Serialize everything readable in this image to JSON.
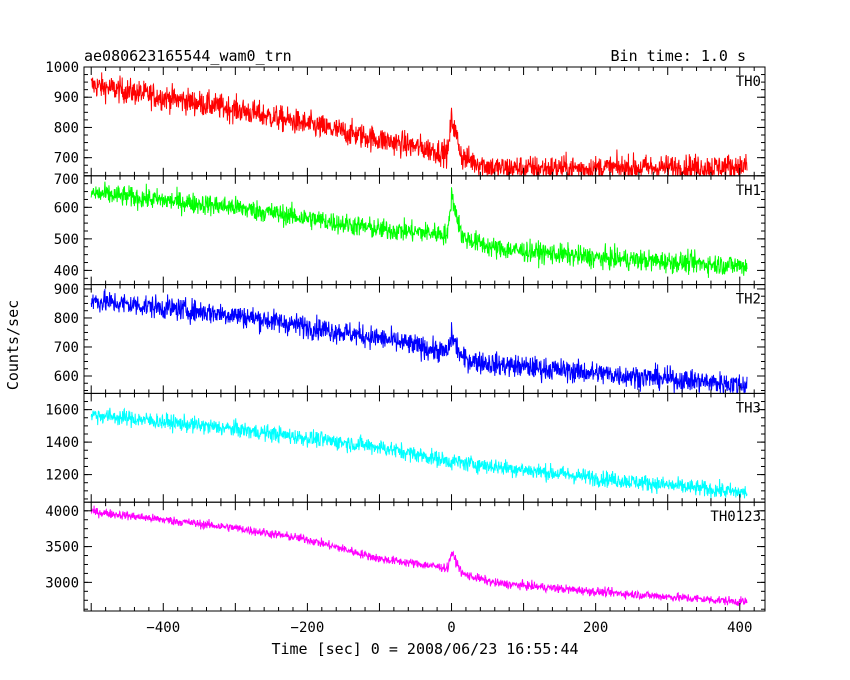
{
  "chart_data": {
    "type": "line",
    "title": "ae080623165544_wam0_trn",
    "bin_time_label": "Bin time: 1.0 s",
    "xlabel": "Time [sec] 0 = 2008/06/23 16:55:44",
    "ylabel": "Counts/sec",
    "xlim": [
      -510,
      435
    ],
    "x_ticks": [
      -400,
      -200,
      0,
      200,
      400
    ],
    "x_tick_labels": [
      "−400",
      "−200",
      "0",
      "200",
      "400"
    ],
    "grid": false,
    "panels": [
      {
        "name": "TH0",
        "color": "#ff0000",
        "ylim": [
          640,
          1000
        ],
        "y_ticks": [
          700,
          800,
          900,
          1000
        ],
        "y_tick_labels": [
          "700",
          "800",
          "900",
          "1000"
        ],
        "profile": [
          [
            -500,
            940
          ],
          [
            -300,
            860
          ],
          [
            -100,
            760
          ],
          [
            -5,
            715
          ],
          [
            0,
            830
          ],
          [
            15,
            700
          ],
          [
            60,
            665
          ],
          [
            200,
            665
          ],
          [
            400,
            670
          ]
        ],
        "noise_amplitude": 38
      },
      {
        "name": "TH1",
        "color": "#00ff00",
        "ylim": [
          355,
          700
        ],
        "y_ticks": [
          400,
          500,
          600,
          700
        ],
        "y_tick_labels": [
          "400",
          "500",
          "600",
          "700"
        ],
        "profile": [
          [
            -500,
            645
          ],
          [
            -300,
            600
          ],
          [
            -100,
            530
          ],
          [
            -5,
            515
          ],
          [
            0,
            640
          ],
          [
            15,
            505
          ],
          [
            60,
            470
          ],
          [
            200,
            440
          ],
          [
            400,
            415
          ]
        ],
        "noise_amplitude": 30
      },
      {
        "name": "TH2",
        "color": "#0000ff",
        "ylim": [
          540,
          915
        ],
        "y_ticks": [
          600,
          700,
          800,
          900
        ],
        "y_tick_labels": [
          "600",
          "700",
          "800",
          "900"
        ],
        "profile": [
          [
            -500,
            860
          ],
          [
            -300,
            810
          ],
          [
            -100,
            730
          ],
          [
            -5,
            680
          ],
          [
            0,
            740
          ],
          [
            15,
            660
          ],
          [
            60,
            640
          ],
          [
            200,
            610
          ],
          [
            400,
            570
          ]
        ],
        "noise_amplitude": 35
      },
      {
        "name": "TH3",
        "color": "#00ffff",
        "ylim": [
          1030,
          1700
        ],
        "y_ticks": [
          1200,
          1400,
          1600
        ],
        "y_tick_labels": [
          "1200",
          "1400",
          "1600"
        ],
        "profile": [
          [
            -500,
            1570
          ],
          [
            -300,
            1480
          ],
          [
            -100,
            1370
          ],
          [
            0,
            1280
          ],
          [
            200,
            1180
          ],
          [
            400,
            1090
          ]
        ],
        "noise_amplitude": 45
      },
      {
        "name": "TH0123",
        "color": "#ff00ff",
        "ylim": [
          2600,
          4120
        ],
        "y_ticks": [
          3000,
          3500,
          4000
        ],
        "y_tick_labels": [
          "3000",
          "3500",
          "4000"
        ],
        "profile": [
          [
            -500,
            3990
          ],
          [
            -300,
            3760
          ],
          [
            -200,
            3600
          ],
          [
            -100,
            3330
          ],
          [
            -5,
            3200
          ],
          [
            0,
            3420
          ],
          [
            15,
            3120
          ],
          [
            60,
            2990
          ],
          [
            200,
            2870
          ],
          [
            400,
            2730
          ]
        ],
        "noise_amplitude": 55
      }
    ]
  }
}
